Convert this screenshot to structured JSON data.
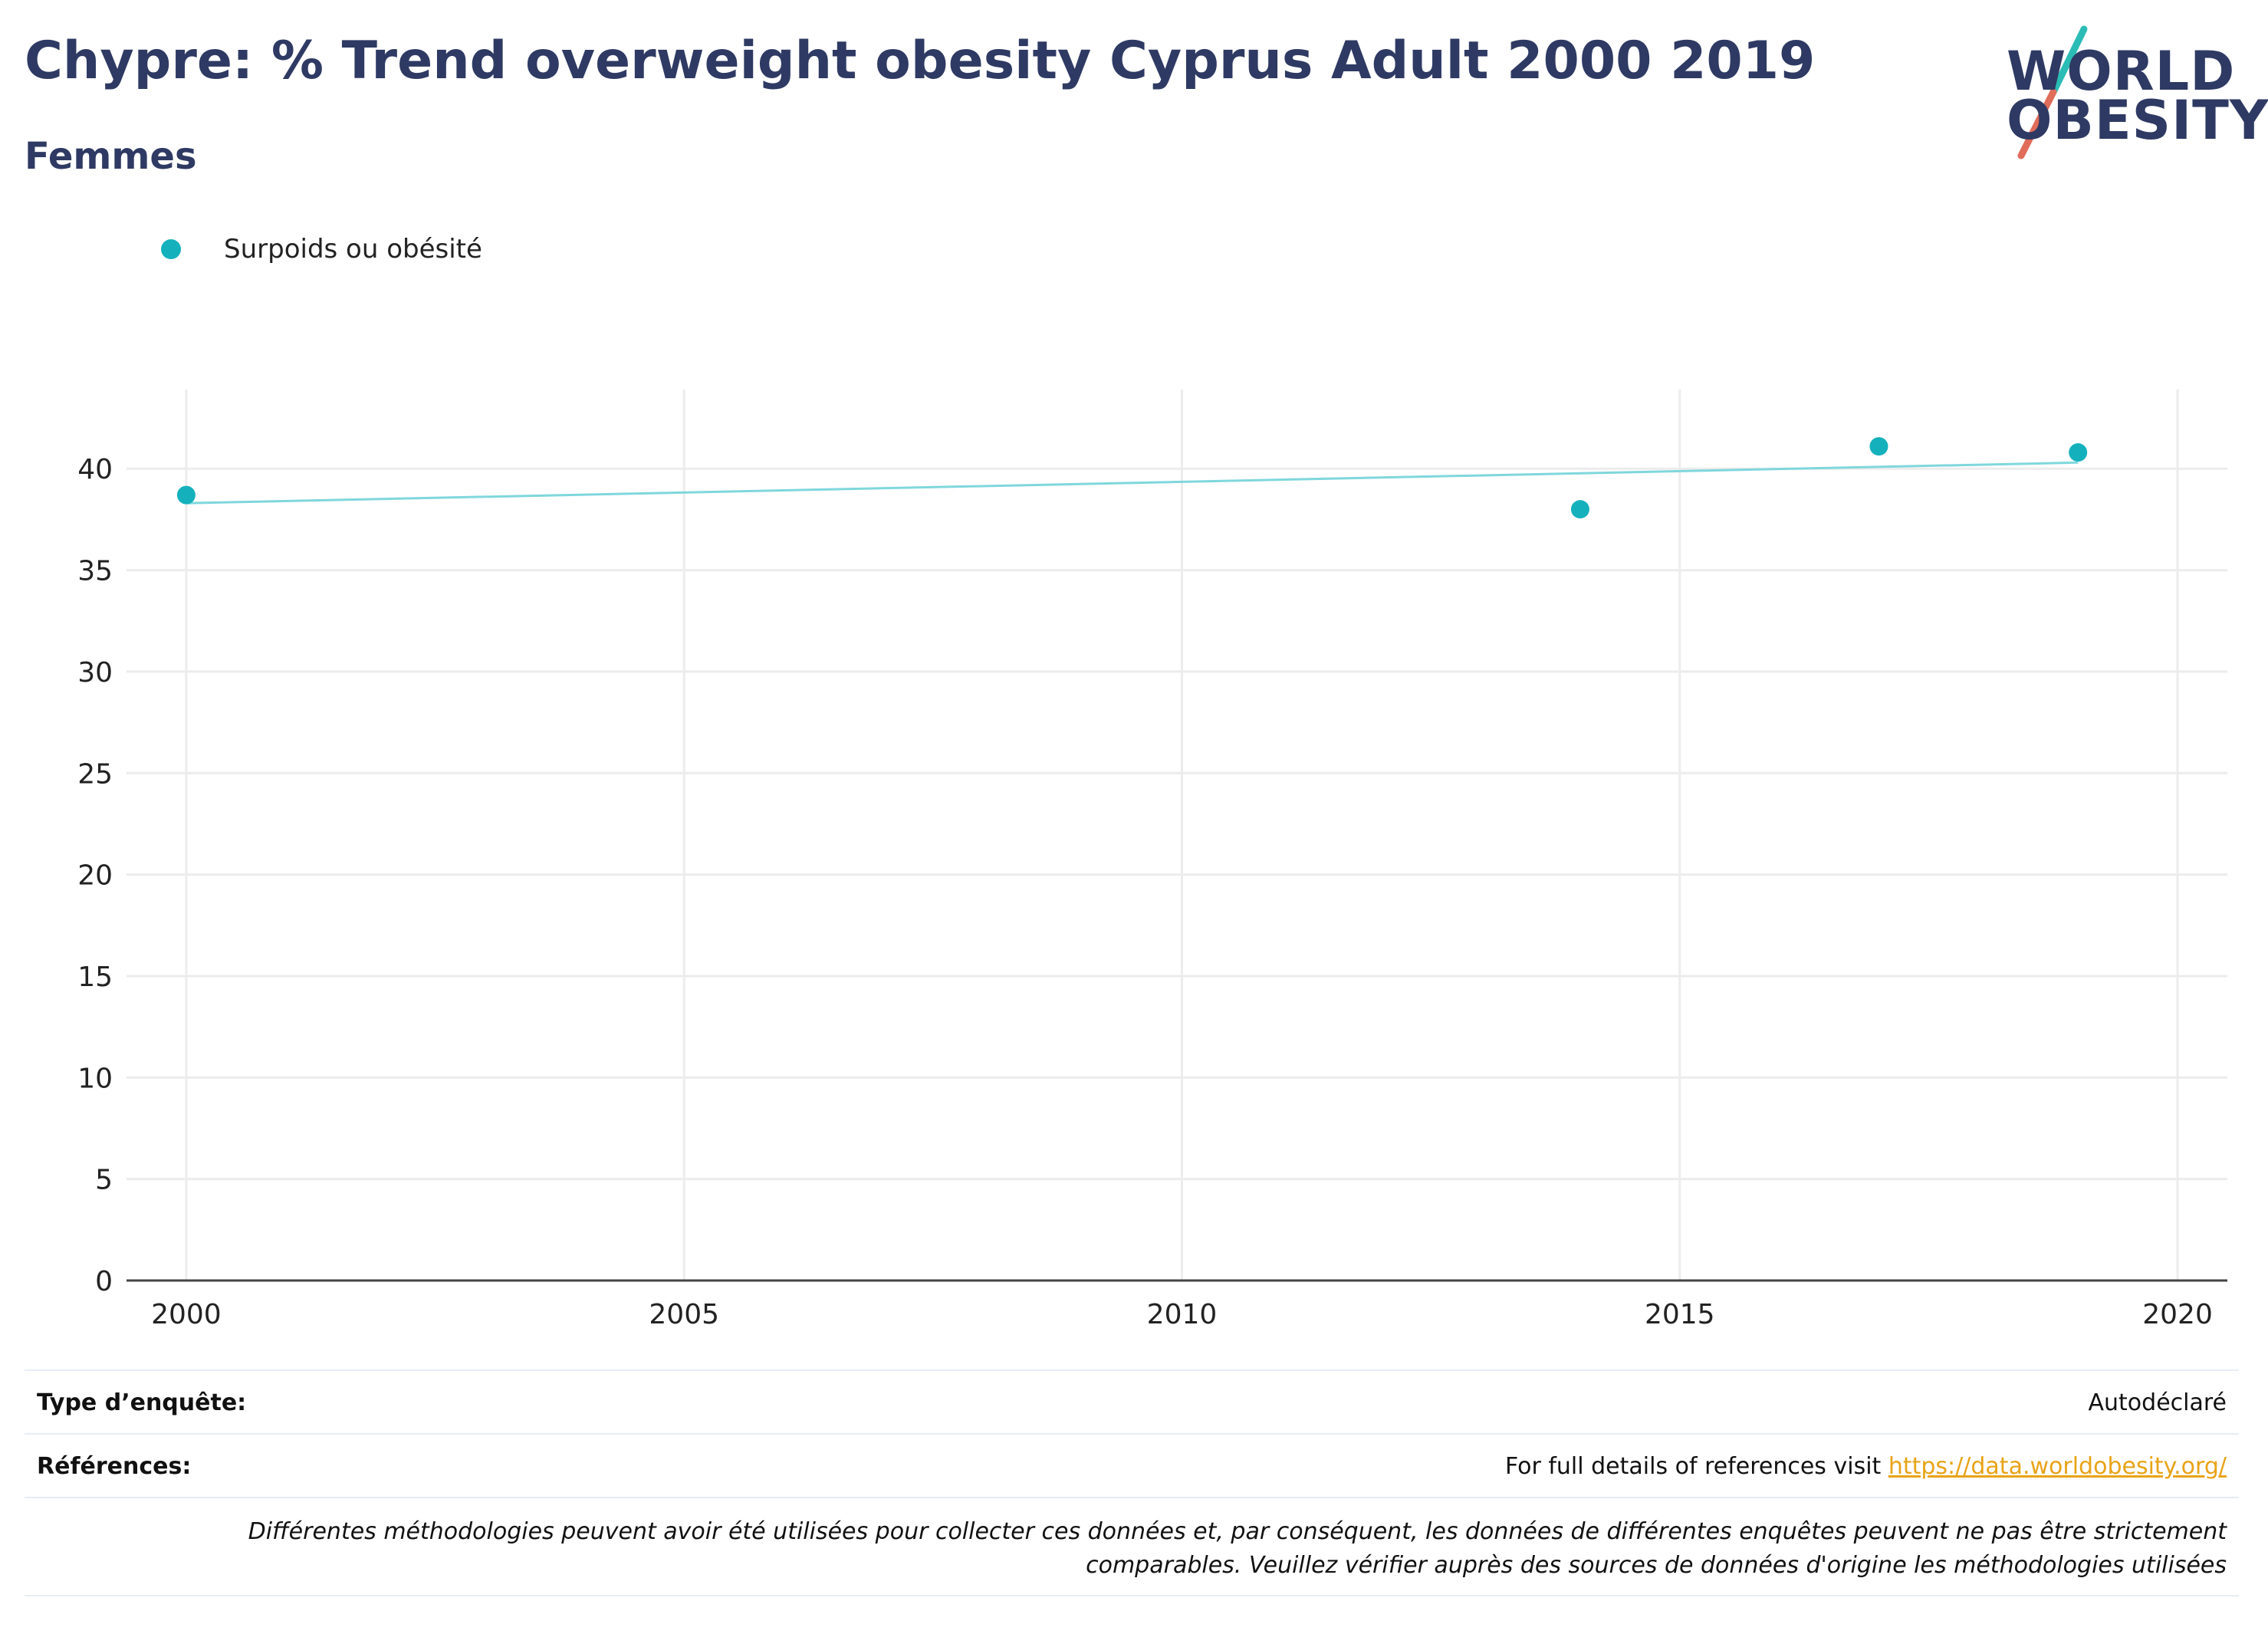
{
  "header": {
    "title": "Chypre: % Trend overweight obesity Cyprus Adult 2000 2019",
    "subtitle": "Femmes"
  },
  "logo": {
    "line1": "WORLD",
    "line2": "OBESITY",
    "slash_top_color": "#2bbcb5",
    "slash_bottom_color": "#e06c5a"
  },
  "colors": {
    "series": "#14b1bc",
    "trendline": "#7fd7dc",
    "grid": "#ececec",
    "axis": "#444444",
    "title": "#2e3a63",
    "link": "#e8a317"
  },
  "chart_data": {
    "type": "scatter",
    "series": [
      {
        "name": "Surpoids ou obésité",
        "x": [
          2000,
          2014,
          2017,
          2019
        ],
        "y": [
          38.7,
          38.0,
          41.1,
          40.8
        ]
      }
    ],
    "trendline": {
      "x": [
        2000,
        2019
      ],
      "y": [
        38.3,
        40.3
      ]
    },
    "xlim": [
      1999.4,
      2020.5
    ],
    "ylim": [
      0,
      43.9
    ],
    "xticks": [
      2000,
      2005,
      2010,
      2015,
      2020
    ],
    "yticks": [
      0,
      5,
      10,
      15,
      20,
      25,
      30,
      35,
      40
    ],
    "grid": true,
    "legend_position": "top-left"
  },
  "footer": {
    "survey_type_label": "Type d’enquête:",
    "survey_type_value": "Autodéclaré",
    "references_label": "Références:",
    "references_prefix": "For full details of references visit ",
    "references_link": "https://data.worldobesity.org/",
    "disclaimer": "Différentes méthodologies peuvent avoir été utilisées pour collecter ces données et, par conséquent, les données de différentes enquêtes peuvent ne pas être strictement comparables. Veuillez vérifier auprès des sources de données d'origine les méthodologies utilisées"
  }
}
